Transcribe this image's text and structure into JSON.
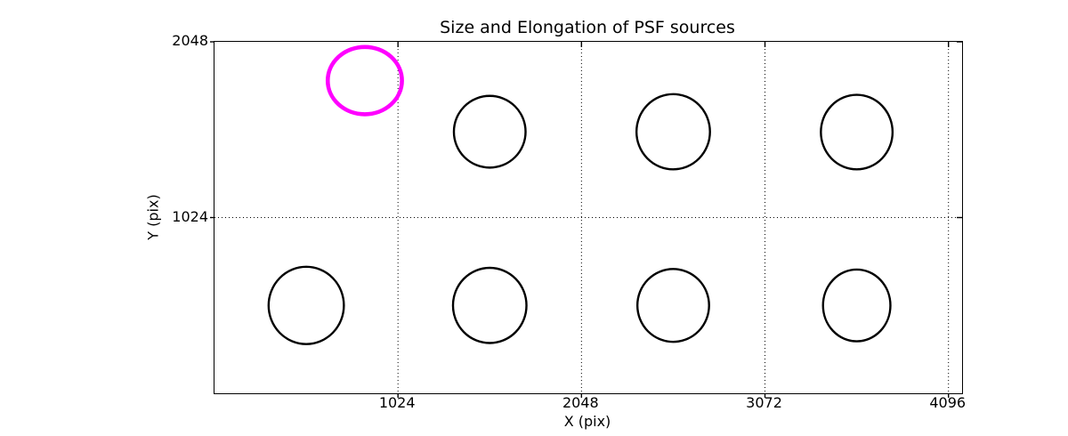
{
  "figure": {
    "background_color": "#ffffff",
    "axes_color": "#000000"
  },
  "chart_data": {
    "type": "scatter",
    "title": "Size and Elongation of PSF sources",
    "xlabel": "X (pix)",
    "ylabel": "Y (pix)",
    "xlim": [
      0,
      4172
    ],
    "ylim": [
      0,
      2048
    ],
    "xticks": [
      1024,
      2048,
      3072,
      4096
    ],
    "yticks": [
      1024,
      2048
    ],
    "grid": {
      "visible": true,
      "style": "dotted",
      "color": "#000000"
    },
    "legend": {
      "visible": false
    },
    "marker": "ellipse-outline (semi-axes encode PSF size and elongation in detector pixels)",
    "colors": {
      "source_outline": "#000000",
      "highlighted_outline": "#ff00ff"
    },
    "sources": [
      {
        "x": 512,
        "y": 512,
        "rx": 210,
        "ry": 225,
        "highlight": false
      },
      {
        "x": 1536,
        "y": 512,
        "rx": 205,
        "ry": 219,
        "highlight": false
      },
      {
        "x": 2560,
        "y": 512,
        "rx": 200,
        "ry": 212,
        "highlight": false
      },
      {
        "x": 3584,
        "y": 512,
        "rx": 188,
        "ry": 209,
        "highlight": false
      },
      {
        "x": 1536,
        "y": 1524,
        "rx": 200,
        "ry": 209,
        "highlight": false
      },
      {
        "x": 2560,
        "y": 1524,
        "rx": 205,
        "ry": 219,
        "highlight": false
      },
      {
        "x": 3584,
        "y": 1522,
        "rx": 200,
        "ry": 217,
        "highlight": false
      },
      {
        "x": 839,
        "y": 1822,
        "rx": 207,
        "ry": 196,
        "highlight": true
      }
    ]
  }
}
